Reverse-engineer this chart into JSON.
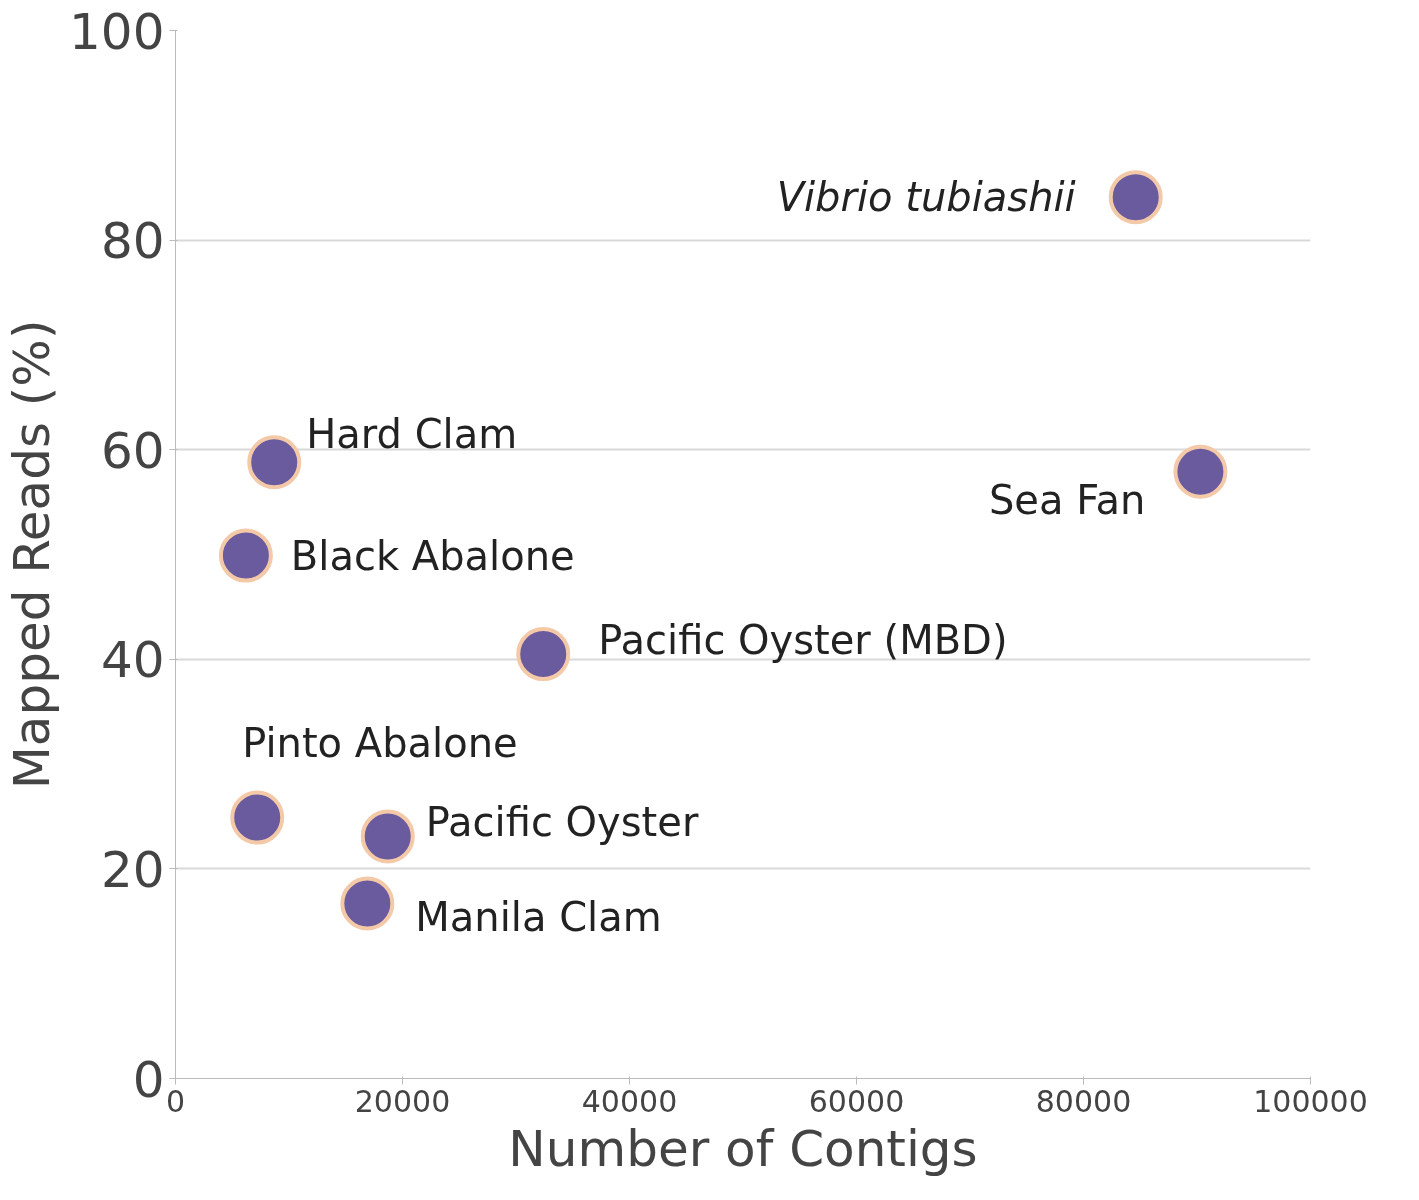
{
  "chart_data": {
    "type": "scatter",
    "xlabel": "Number of Contigs",
    "ylabel": "Mapped Reads (%)",
    "x": [
      84600,
      90300,
      8700,
      6200,
      32400,
      7200,
      18700,
      16900
    ],
    "values": [
      84.1,
      57.9,
      58.8,
      49.9,
      40.5,
      24.9,
      23.1,
      16.7
    ],
    "color": "#6a5a9e",
    "marker": "circle",
    "xlim": [
      0,
      100000
    ],
    "xticks": [
      0,
      20000,
      40000,
      60000,
      80000,
      100000
    ],
    "ylim": [
      0,
      100
    ],
    "yticks": [
      0,
      20,
      40,
      60,
      80,
      100
    ],
    "grid": "y",
    "annotations": [
      {
        "text": "Vibrio tubiashii",
        "x": 84600,
        "y": 84.1
      },
      {
        "text": "Sea Fan",
        "x": 90300,
        "y": 57.9
      },
      {
        "text": "Hard Clam",
        "x": 8700,
        "y": 58.8
      },
      {
        "text": "Black Abalone",
        "x": 6200,
        "y": 49.9
      },
      {
        "text": "Pacific Oyster (MBD)",
        "x": 32400,
        "y": 40.5
      },
      {
        "text": "Pinto Abalone",
        "x": 7200,
        "y": 24.9
      },
      {
        "text": "Pacific Oyster",
        "x": 18700,
        "y": 23.1
      },
      {
        "text": "Manila Clam",
        "x": 16900,
        "y": 16.7
      }
    ]
  }
}
